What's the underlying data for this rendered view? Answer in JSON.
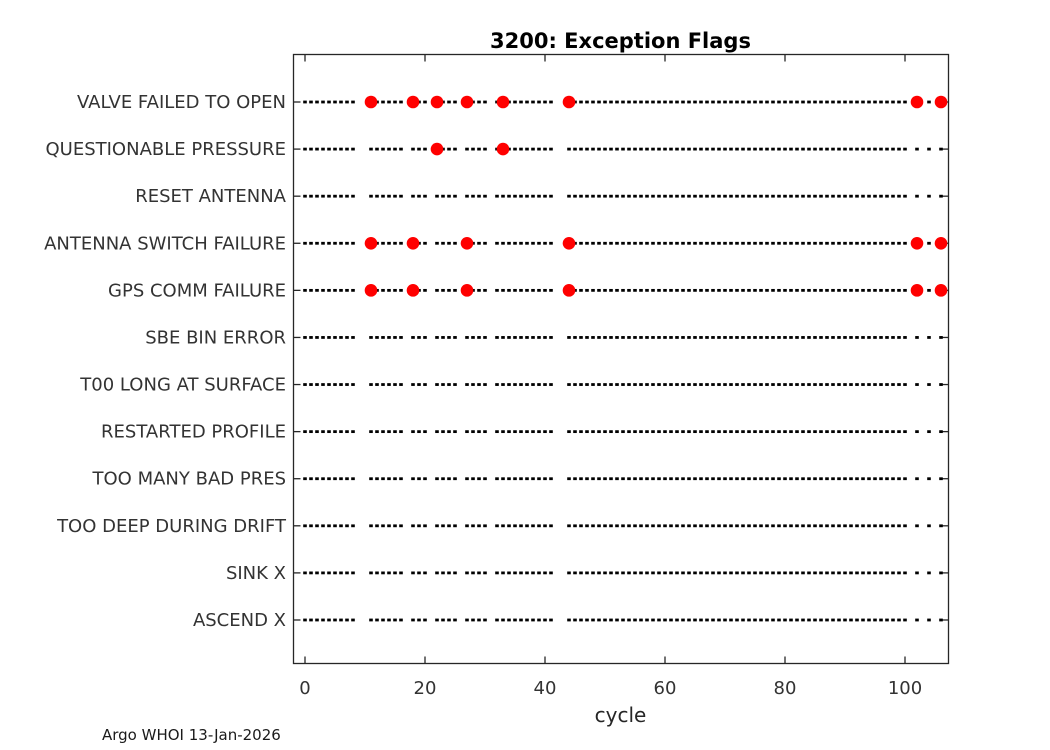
{
  "figure": {
    "background": "#ffffff"
  },
  "footer": {
    "text": "Argo WHOI 13-Jan-2026"
  },
  "chart_data": {
    "type": "scatter",
    "title": "3200: Exception Flags",
    "xlabel": "cycle",
    "ylabel": "",
    "x_ticks": [
      0,
      20,
      40,
      60,
      80,
      100
    ],
    "xlim": [
      -2,
      107.2
    ],
    "grid": false,
    "legend": "none",
    "categories": [
      "VALVE FAILED TO OPEN",
      "QUESTIONABLE PRESSURE",
      "RESET ANTENNA",
      "ANTENNA SWITCH FAILURE",
      "GPS COMM FAILURE",
      "SBE BIN ERROR",
      "T00 LONG AT SURFACE",
      "RESTARTED PROFILE",
      "TOO MANY BAD PRES",
      "TOO DEEP DURING DRIFT",
      "SINK X",
      "ASCEND X"
    ],
    "series": [
      {
        "name": "VALVE FAILED TO OPEN",
        "flagged_cycles": [
          11,
          18,
          22,
          27,
          33,
          44,
          102,
          106
        ]
      },
      {
        "name": "QUESTIONABLE PRESSURE",
        "flagged_cycles": [
          22,
          33
        ]
      },
      {
        "name": "RESET ANTENNA",
        "flagged_cycles": []
      },
      {
        "name": "ANTENNA SWITCH FAILURE",
        "flagged_cycles": [
          11,
          18,
          27,
          44,
          102,
          106
        ]
      },
      {
        "name": "GPS COMM FAILURE",
        "flagged_cycles": [
          11,
          18,
          27,
          44,
          102,
          106
        ]
      },
      {
        "name": "SBE BIN ERROR",
        "flagged_cycles": []
      },
      {
        "name": "T00 LONG AT SURFACE",
        "flagged_cycles": []
      },
      {
        "name": "RESTARTED PROFILE",
        "flagged_cycles": []
      },
      {
        "name": "TOO MANY BAD PRES",
        "flagged_cycles": []
      },
      {
        "name": "TOO DEEP DURING DRIFT",
        "flagged_cycles": []
      },
      {
        "name": "SINK X",
        "flagged_cycles": []
      },
      {
        "name": "ASCEND X",
        "flagged_cycles": []
      }
    ],
    "baseline_present_cycle_ranges": [
      [
        0,
        8
      ],
      [
        11,
        16
      ],
      [
        18,
        20
      ],
      [
        22,
        25
      ],
      [
        27,
        30
      ],
      [
        32,
        41
      ],
      [
        44,
        100
      ],
      [
        102,
        102
      ],
      [
        104,
        104
      ],
      [
        106,
        106
      ]
    ],
    "missing_cycles": [
      9,
      10,
      17,
      21,
      26,
      31,
      42,
      43,
      101,
      103,
      105
    ],
    "marker_color": "#ff0000",
    "baseline_color": "#000000",
    "axis_color": "#262626"
  }
}
